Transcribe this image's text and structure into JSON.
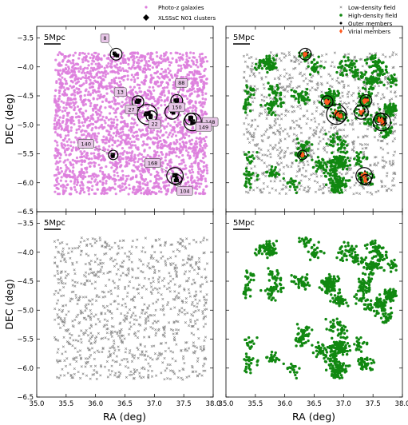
{
  "chart_data": {
    "type": "scatter",
    "xlabel": "RA (deg)",
    "ylabel": "DEC (deg)",
    "xlim": [
      35.0,
      38.0
    ],
    "ylim": [
      -6.5,
      -3.3
    ],
    "xticks": [
      "35.0",
      "35.5",
      "36.0",
      "36.5",
      "37.0",
      "37.5",
      "38.0"
    ],
    "yticks": [
      "-3.5",
      "-4.0",
      "-4.5",
      "-5.0",
      "-5.5",
      "-6.0",
      "-6.5"
    ],
    "scale_bar": "5Mpc",
    "grid": false,
    "field_extent": {
      "ra": [
        35.3,
        37.9
      ],
      "dec": [
        -6.2,
        -3.75
      ]
    },
    "legends": {
      "top_left": [
        "Photo-z galaxies",
        "XLSSsC N01 clusters"
      ],
      "top_right": [
        "Low-density field",
        "High-density field",
        "Outer members",
        "Virial members"
      ]
    },
    "colors": {
      "photoz": "#dd7ddd",
      "low_density": "#888888",
      "high_density": "#118811",
      "outer": "#000000",
      "virial": "#ff5a1f"
    },
    "clusters": [
      {
        "id": "8",
        "ra": 36.35,
        "dec": -3.78,
        "r": 0.1
      },
      {
        "id": "13",
        "ra": 36.72,
        "dec": -4.6,
        "r": 0.1
      },
      {
        "id": "27",
        "ra": 36.88,
        "dec": -4.82,
        "r": 0.17
      },
      {
        "id": "88",
        "ra": 37.38,
        "dec": -4.58,
        "r": 0.1
      },
      {
        "id": "150",
        "ra": 37.3,
        "dec": -4.78,
        "r": 0.12
      },
      {
        "id": "22",
        "ra": 36.95,
        "dec": -4.85,
        "r": 0.09
      },
      {
        "id": "148",
        "ra": 37.65,
        "dec": -4.95,
        "r": 0.15
      },
      {
        "id": "149",
        "ra": 37.62,
        "dec": -4.9,
        "r": 0.1
      },
      {
        "id": "140",
        "ra": 36.3,
        "dec": -5.52,
        "r": 0.08
      },
      {
        "id": "168",
        "ra": 37.35,
        "dec": -5.88,
        "r": 0.14
      },
      {
        "id": "104",
        "ra": 37.38,
        "dec": -5.95,
        "r": 0.09
      }
    ],
    "panels": [
      {
        "position": "top-left",
        "series": [
          "Photo-z galaxies",
          "XLSSsC N01 clusters"
        ]
      },
      {
        "position": "top-right",
        "series": [
          "Low-density field",
          "High-density field",
          "Outer members",
          "Virial members"
        ]
      },
      {
        "position": "bottom-left",
        "series": [
          "Low-density field"
        ]
      },
      {
        "position": "bottom-right",
        "series": [
          "High-density field"
        ]
      }
    ]
  }
}
